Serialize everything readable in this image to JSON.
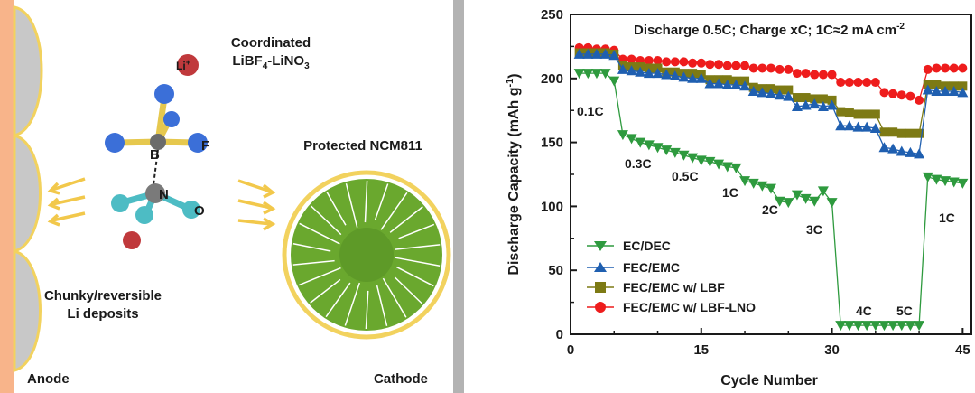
{
  "schematic": {
    "anode_label": "Anode",
    "cathode_label": "Cathode",
    "coordinated_line1": "Coordinated",
    "coordinated_line2_parts": [
      "LiBF",
      "4",
      "-LiNO",
      "3"
    ],
    "li_ion": "Li",
    "li_ion_charge": "+",
    "protected_label": "Protected NCM811",
    "deposit_line1": "Chunky/reversible",
    "deposit_line2": "Li deposits",
    "atom_b": "B",
    "atom_f": "F",
    "atom_n": "N",
    "atom_o": "O",
    "colors": {
      "anode": "#f8b48a",
      "anode_deposit": "#c8c8c8",
      "outline": "#f2d25e",
      "separator": "#b3b3b3",
      "cathode_fill": "#6aa82e",
      "boron": "#6b6b6b",
      "fluorine": "#3b6fd8",
      "nitrogen": "#7a7a7a",
      "oxygen": "#4dbcc4",
      "lithium": "#c0393c",
      "bond": "#e6c84e"
    }
  },
  "chart_data": {
    "type": "scatter",
    "title": "Discharge 0.5C; Charge xC; 1C≈2 mA cm",
    "title_superscript": "-2",
    "xlabel": "Cycle Number",
    "ylabel": "Discharge Capacity (mAh g",
    "ylabel_superscript": "-1",
    "ylabel_end": ")",
    "xlim": [
      0,
      46
    ],
    "ylim": [
      0,
      250
    ],
    "xticks": [
      0,
      15,
      30,
      45
    ],
    "yticks": [
      0,
      50,
      100,
      150,
      200,
      250
    ],
    "x": [
      1,
      2,
      3,
      4,
      5,
      6,
      7,
      8,
      9,
      10,
      11,
      12,
      13,
      14,
      15,
      16,
      17,
      18,
      19,
      20,
      21,
      22,
      23,
      24,
      25,
      26,
      27,
      28,
      29,
      30,
      31,
      32,
      33,
      34,
      35,
      36,
      37,
      38,
      39,
      40,
      41,
      42,
      43,
      44,
      45
    ],
    "series": [
      {
        "name": "EC/DEC",
        "marker": "triangle-down",
        "color": "#2e9a3e",
        "values": [
          204,
          204,
          204,
          204,
          198,
          156,
          153,
          150,
          148,
          146,
          144,
          142,
          140,
          138,
          136,
          135,
          133,
          131,
          130,
          120,
          118,
          116,
          114,
          104,
          103,
          109,
          106,
          104,
          112,
          103,
          7,
          7,
          7,
          7,
          7,
          7,
          7,
          7,
          7,
          7,
          123,
          121,
          120,
          119,
          118
        ]
      },
      {
        "name": "FEC/EMC",
        "marker": "triangle-up",
        "color": "#1f5fb0",
        "values": [
          219,
          219,
          219,
          219,
          218,
          207,
          206,
          205,
          204,
          204,
          203,
          202,
          201,
          200,
          200,
          196,
          196,
          195,
          195,
          194,
          190,
          189,
          188,
          187,
          186,
          178,
          179,
          180,
          178,
          179,
          163,
          163,
          162,
          162,
          161,
          146,
          145,
          143,
          142,
          141,
          191,
          190,
          190,
          190,
          189
        ]
      },
      {
        "name": "FEC/EMC w/ LBF",
        "marker": "square",
        "color": "#7d7a14",
        "values": [
          220,
          220,
          220,
          220,
          219,
          210,
          209,
          209,
          208,
          208,
          205,
          205,
          204,
          204,
          203,
          199,
          199,
          199,
          198,
          198,
          193,
          192,
          192,
          191,
          191,
          185,
          185,
          184,
          184,
          183,
          174,
          173,
          172,
          172,
          172,
          158,
          158,
          157,
          157,
          157,
          195,
          195,
          194,
          194,
          194
        ]
      },
      {
        "name": "FEC/EMC w/ LBF-LNO",
        "marker": "circle",
        "color": "#ee1c1c",
        "values": [
          224,
          224,
          223,
          223,
          222,
          215,
          215,
          214,
          214,
          214,
          213,
          213,
          213,
          212,
          212,
          211,
          211,
          210,
          210,
          210,
          208,
          208,
          208,
          207,
          207,
          204,
          204,
          203,
          203,
          203,
          197,
          197,
          197,
          197,
          197,
          189,
          188,
          187,
          186,
          183,
          207,
          208,
          208,
          208,
          208
        ]
      }
    ],
    "annotations": [
      "0.1C",
      "0.3C",
      "0.5C",
      "1C",
      "2C",
      "3C",
      "4C",
      "5C",
      "1C"
    ],
    "legend_position": "lower-left"
  }
}
